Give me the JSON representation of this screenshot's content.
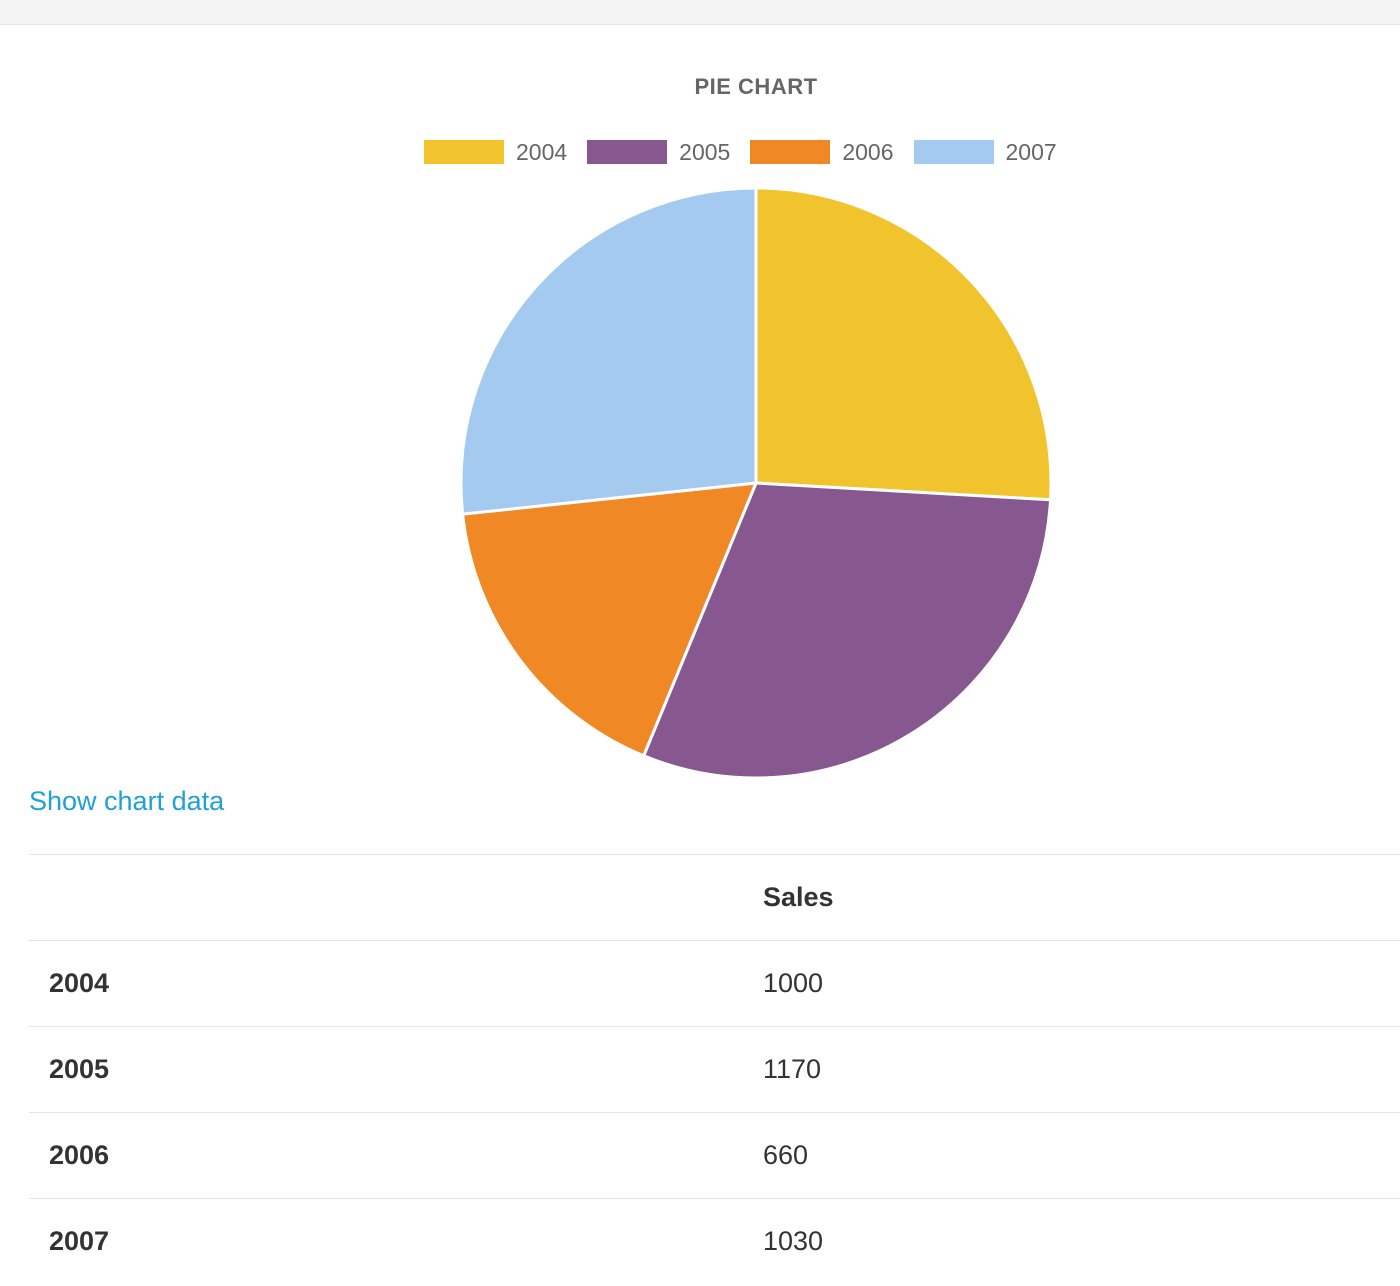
{
  "chart_data": {
    "type": "pie",
    "title": "PIE CHART",
    "categories": [
      "2004",
      "2005",
      "2006",
      "2007"
    ],
    "values": [
      1000,
      1170,
      660,
      1030
    ],
    "colors": [
      "#f1c32c",
      "#87588f",
      "#f08825",
      "#a4cbef"
    ],
    "legend_position": "top"
  },
  "link": {
    "show_data": "Show chart data"
  },
  "table": {
    "header": [
      "",
      "Sales"
    ],
    "rows": [
      {
        "label": "2004",
        "value": "1000"
      },
      {
        "label": "2005",
        "value": "1170"
      },
      {
        "label": "2006",
        "value": "660"
      },
      {
        "label": "2007",
        "value": "1030"
      }
    ]
  }
}
